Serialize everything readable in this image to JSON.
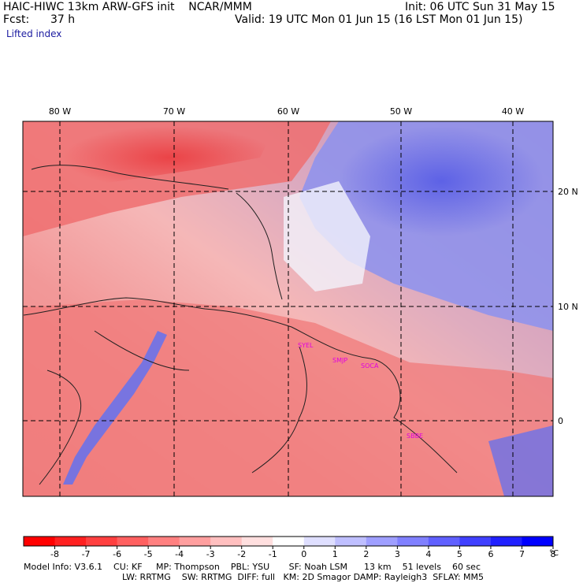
{
  "header": {
    "title": "HAIC-HIWC 13km ARW-GFS init    NCAR/MMM",
    "init": "Init: 06 UTC Sun 31 May 15",
    "fcst_label": "Fcst:",
    "fcst_value": "37 h",
    "valid": "Valid: 19 UTC Mon 01 Jun 15 (16 LST Mon 01 Jun 15)",
    "field": "Lifted index"
  },
  "map": {
    "lon_labels": [
      "80 W",
      "70 W",
      "60 W",
      "50 W",
      "40 W"
    ],
    "lat_labels": [
      "20 N",
      "10 N",
      "0"
    ],
    "stations": [
      "SYEL",
      "SMJP",
      "SOCA",
      "SBBE"
    ],
    "colors": {
      "negative": "#e8323c",
      "positive": "#3c46e6",
      "neutral": "#ffffff",
      "coast": "#202020",
      "grid": "#000000",
      "station": "#e000e0"
    }
  },
  "colorbar": {
    "ticks": [
      "-8",
      "-7",
      "-6",
      "-5",
      "-4",
      "-3",
      "-2",
      "-1",
      "0",
      "1",
      "2",
      "3",
      "4",
      "5",
      "6",
      "7",
      "8"
    ],
    "unit": "°C",
    "bins": [
      -8.5,
      -7.5,
      -6.5,
      -5.5,
      -4.5,
      -3.5,
      -2.5,
      -1.5,
      -0.5,
      0.5,
      1.5,
      2.5,
      3.5,
      4.5,
      5.5,
      6.5,
      7.5,
      8.5
    ]
  },
  "footer": {
    "line1": "Model Info: V3.6.1    CU: KF     MP: Thompson    PBL: YSU       SF: Noah LSM      13 km    51 levels    60 sec",
    "line2": "LW: RRTMG    SW: RRTMG  DIFF: full   KM: 2D Smagor DAMP: Rayleigh3  SFLAY: MM5"
  }
}
